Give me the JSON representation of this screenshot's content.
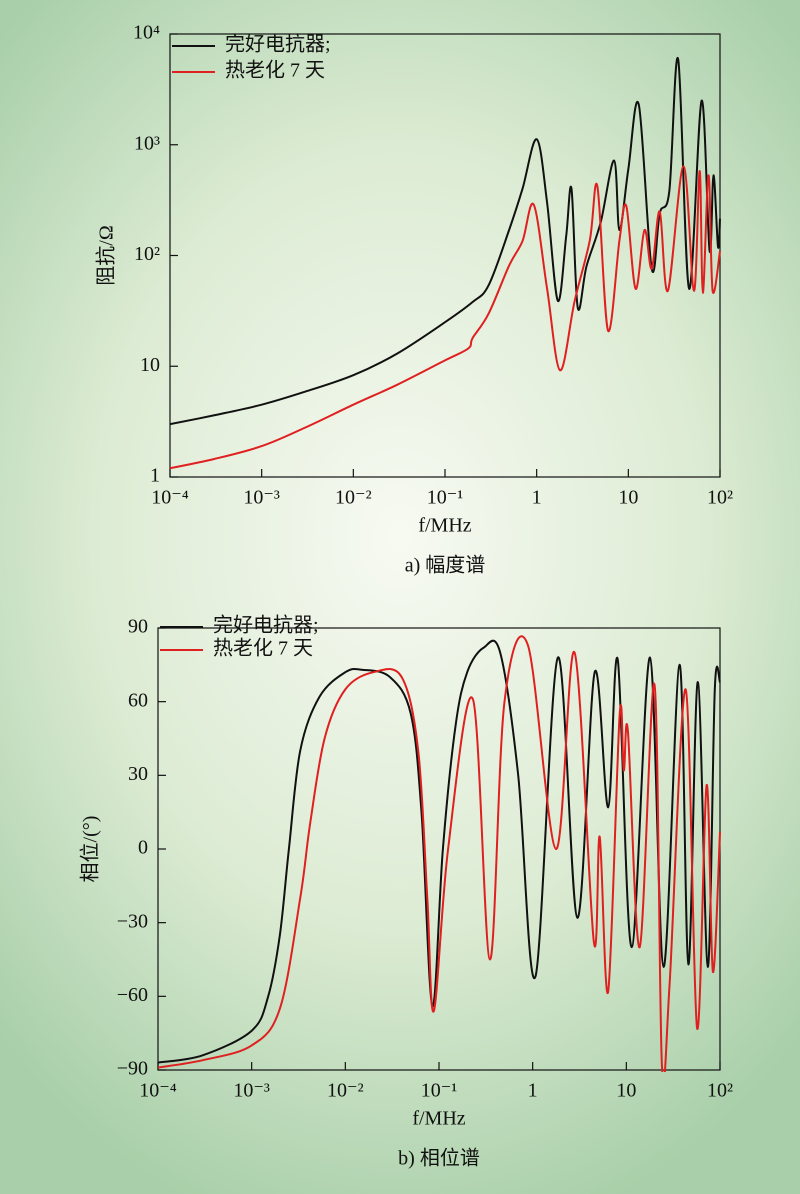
{
  "chart_data": [
    {
      "type": "line",
      "xscale": "log",
      "yscale": "log",
      "xlabel": "f/MHz",
      "ylabel": "阻抗/Ω",
      "caption": "a) 幅度谱",
      "legend": "upper left",
      "xlim": [
        0.0001,
        100
      ],
      "xticks": [
        {
          "value": 0.0001,
          "label": "10⁻⁴"
        },
        {
          "value": 0.001,
          "label": "10⁻³"
        },
        {
          "value": 0.01,
          "label": "10⁻²"
        },
        {
          "value": 0.1,
          "label": "10⁻¹"
        },
        1,
        10,
        {
          "value": 100,
          "label": "10²"
        }
      ],
      "ylim": [
        1,
        10000
      ],
      "yticks": [
        1,
        10,
        {
          "value": 100,
          "label": "10²"
        },
        {
          "value": 1000,
          "label": "10³"
        },
        {
          "value": 10000,
          "label": "10⁴"
        }
      ],
      "series": [
        {
          "name": "完好电抗器;",
          "color": "#111111",
          "x": [
            0.0001,
            0.0003,
            0.001,
            0.003,
            0.01,
            0.03,
            0.1,
            0.2,
            0.3,
            0.5,
            0.7,
            1.0,
            1.3,
            1.7,
            2.1,
            2.4,
            2.8,
            3.5,
            5,
            7,
            8,
            10,
            13,
            18,
            22,
            28,
            35,
            46,
            63,
            77,
            85,
            95,
            100
          ],
          "values": [
            3.0,
            3.6,
            4.5,
            5.9,
            8.3,
            13,
            25,
            38,
            54,
            170,
            400,
            1120,
            300,
            39,
            150,
            400,
            34,
            80,
            200,
            720,
            170,
            600,
            2300,
            76,
            240,
            380,
            5900,
            50,
            2500,
            110,
            530,
            120,
            215
          ]
        },
        {
          "name": "热老化 7 天",
          "color": "#e02020",
          "x": [
            0.0001,
            0.0003,
            0.001,
            0.003,
            0.01,
            0.03,
            0.1,
            0.18,
            0.2,
            0.3,
            0.5,
            0.7,
            0.93,
            1.3,
            1.8,
            2.6,
            3.8,
            4.6,
            6,
            8,
            9.5,
            12,
            15,
            18,
            22,
            27,
            40,
            52,
            60,
            65,
            75,
            83,
            100
          ],
          "values": [
            1.2,
            1.45,
            1.9,
            2.8,
            4.5,
            6.8,
            11.3,
            14.5,
            18,
            30,
            81,
            135,
            287,
            50,
            9.2,
            39,
            137,
            420,
            21,
            136,
            280,
            50,
            170,
            76,
            250,
            48,
            640,
            48,
            580,
            46,
            530,
            48,
            110
          ]
        }
      ]
    },
    {
      "type": "line",
      "xscale": "log",
      "xlabel": "f/MHz",
      "ylabel": "相位/(°)",
      "caption": "b) 相位谱",
      "legend": "upper left",
      "xlim": [
        0.0001,
        100
      ],
      "xticks": [
        {
          "value": 0.0001,
          "label": "10⁻⁴"
        },
        {
          "value": 0.001,
          "label": "10⁻³"
        },
        {
          "value": 0.01,
          "label": "10⁻²"
        },
        {
          "value": 0.1,
          "label": "10⁻¹"
        },
        1,
        10,
        {
          "value": 100,
          "label": "10²"
        }
      ],
      "ylim": [
        -90,
        90
      ],
      "yticks": [
        {
          "value": -90,
          "label": "−90"
        },
        {
          "value": -60,
          "label": "−60"
        },
        {
          "value": -30,
          "label": "−30"
        },
        0,
        30,
        60,
        90
      ],
      "series": [
        {
          "name": "完好电抗器;",
          "color": "#111111",
          "x": [
            0.0001,
            0.0003,
            0.001,
            0.0015,
            0.002,
            0.0025,
            0.0033,
            0.0053,
            0.01,
            0.015,
            0.03,
            0.05,
            0.065,
            0.085,
            0.11,
            0.15,
            0.2,
            0.3,
            0.45,
            0.7,
            1.07,
            1.86,
            3.0,
            4.6,
            6.4,
            8.1,
            11.4,
            17.9,
            25,
            37,
            46,
            58,
            74,
            88,
            100
          ],
          "values": [
            -87,
            -84,
            -74,
            -60,
            -35,
            0,
            40,
            62,
            72,
            73,
            70,
            55,
            15,
            -64,
            0,
            50,
            72,
            82,
            80,
            30,
            -52,
            78,
            -28,
            72,
            17,
            77,
            -40,
            78,
            -48,
            75,
            -47,
            68,
            -48,
            65,
            68
          ]
        },
        {
          "name": "热老化 7 天",
          "color": "#e02020",
          "x": [
            0.0001,
            0.0003,
            0.001,
            0.002,
            0.0033,
            0.0042,
            0.006,
            0.01,
            0.02,
            0.04,
            0.06,
            0.075,
            0.088,
            0.125,
            0.23,
            0.35,
            0.5,
            0.89,
            1.78,
            2.8,
            4.5,
            5.2,
            6.4,
            8.5,
            9.4,
            10.4,
            13.9,
            20,
            24,
            29,
            43,
            57,
            72,
            84,
            100
          ],
          "values": [
            -89,
            -86,
            -80,
            -65,
            -20,
            10,
            45,
            65,
            72,
            70,
            40,
            -20,
            -66,
            0,
            61,
            -45,
            60,
            83,
            0,
            80,
            -38,
            5,
            -58,
            55,
            32,
            48,
            -40,
            67,
            -88,
            -55,
            65,
            -73,
            26,
            -50,
            7
          ]
        }
      ]
    }
  ]
}
